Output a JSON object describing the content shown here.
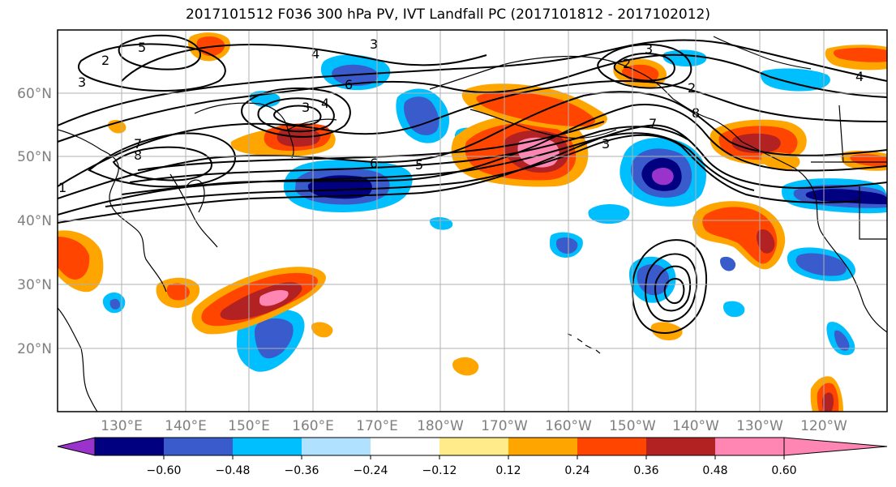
{
  "title": "2017101512 F036 300 hPa PV, IVT Landfall PC (2017101812 - 2017102012)",
  "map": {
    "lat_labels": [
      "60°N",
      "50°N",
      "40°N",
      "30°N",
      "20°N"
    ],
    "lon_labels": [
      "130°E",
      "140°E",
      "150°E",
      "160°E",
      "170°E",
      "180°W",
      "170°W",
      "160°W",
      "150°W",
      "140°W",
      "130°W",
      "120°W"
    ],
    "contour_labels": [
      "5",
      "2",
      "3",
      "1",
      "7",
      "8",
      "3",
      "6",
      "3",
      "4",
      "6",
      "5",
      "4",
      "3",
      "2",
      "3",
      "2",
      "7",
      "8",
      "4"
    ],
    "colors": {
      "land_outline": "#000000",
      "grid": "#b0b0b0"
    }
  },
  "colorbar": {
    "ticks": [
      "−0.60",
      "−0.48",
      "−0.36",
      "−0.24",
      "−0.12",
      "0.12",
      "0.24",
      "0.36",
      "0.48",
      "0.60"
    ],
    "colors": [
      "#9933cc",
      "#000080",
      "#3a5bcc",
      "#00bfff",
      "#b0e2ff",
      "#ffffff",
      "#ffeb8a",
      "#ffa500",
      "#ff4500",
      "#b22222",
      "#ff85b3"
    ]
  }
}
